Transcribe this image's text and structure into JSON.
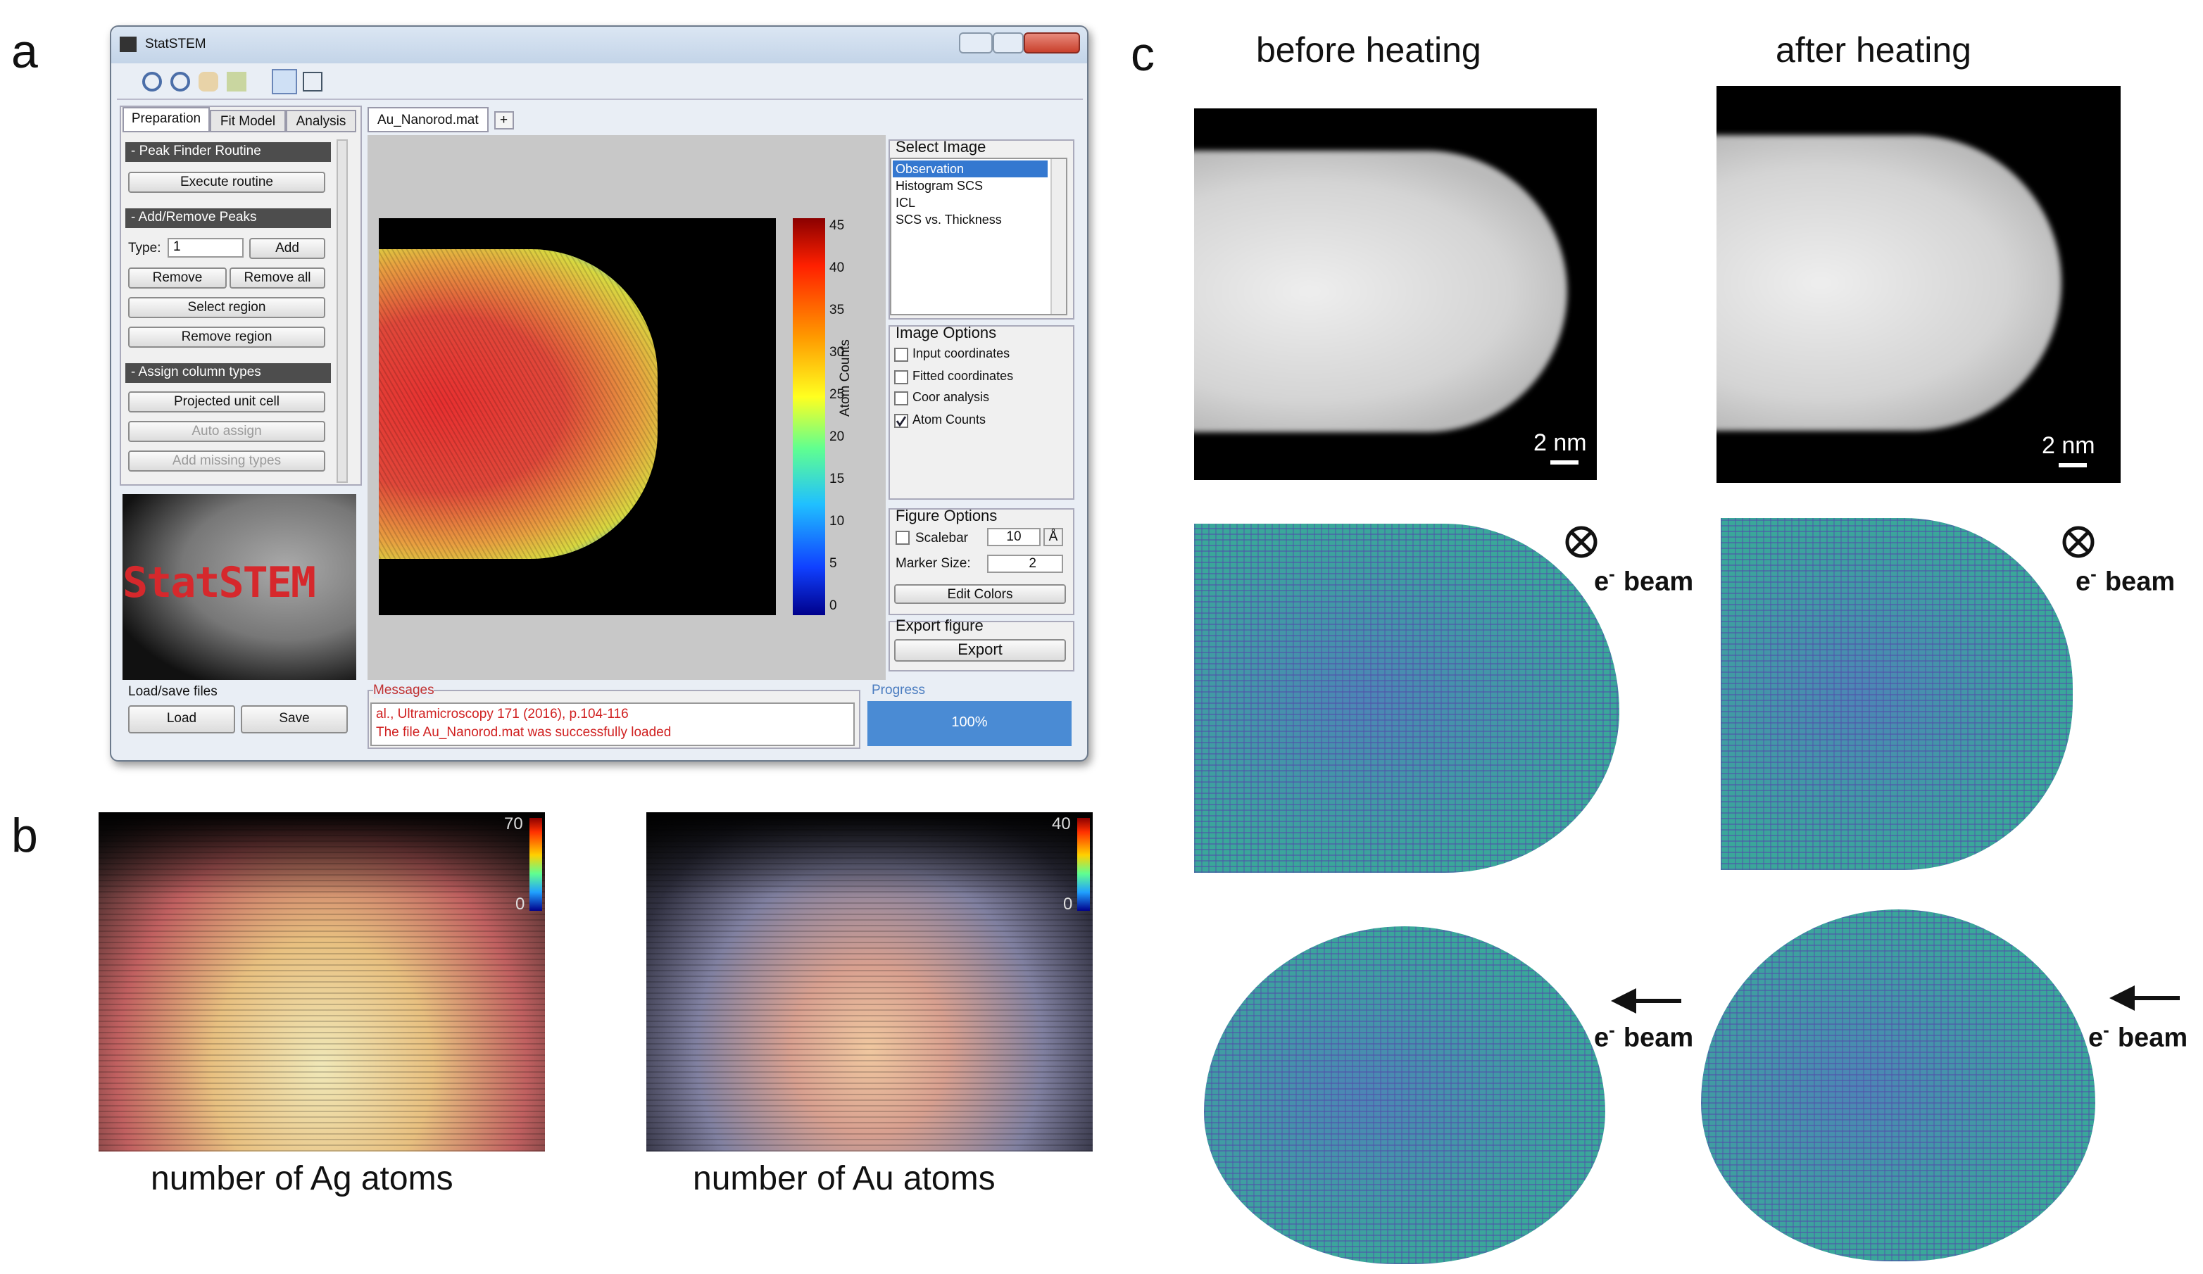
{
  "panel_labels": [
    "a",
    "b",
    "c"
  ],
  "statstem": {
    "window_title": "StatSTEM",
    "tabs": [
      "Preparation",
      "Fit Model",
      "Analysis"
    ],
    "peak_finder": {
      "title": "- Peak Finder Routine",
      "button": "Execute routine"
    },
    "add_remove": {
      "title": "- Add/Remove Peaks",
      "type_label": "Type:",
      "type_value": "1",
      "add": "Add",
      "remove": "Remove",
      "remove_all": "Remove all",
      "select_region": "Select region",
      "remove_region": "Remove region"
    },
    "assign": {
      "title": "- Assign column types",
      "buttons": [
        "Projected unit cell",
        "Auto assign",
        "Add missing types"
      ]
    },
    "logo": "StatSTEM",
    "load_save": {
      "title": "Load/save files",
      "load": "Load",
      "save": "Save"
    },
    "file_tab": "Au_Nanorod.mat",
    "plus_tab": "+",
    "colorbar_ticks": [
      45,
      40,
      35,
      30,
      25,
      20,
      15,
      10,
      5,
      0
    ],
    "colorbar_label": "Atom Counts",
    "select_image": {
      "title": "Select Image",
      "items": [
        "Observation",
        "Histogram SCS",
        "ICL",
        "SCS vs. Thickness"
      ]
    },
    "image_options": {
      "title": "Image Options",
      "items": [
        {
          "label": "Input coordinates",
          "checked": false
        },
        {
          "label": "Fitted coordinates",
          "checked": false
        },
        {
          "label": "Coor analysis",
          "checked": false
        },
        {
          "label": "Atom Counts",
          "checked": true
        }
      ]
    },
    "figure_options": {
      "title": "Figure Options",
      "scalebar_label": "Scalebar",
      "scalebar_checked": false,
      "scalebar_value": "10",
      "scalebar_unit": "Å",
      "marker_size_label": "Marker Size:",
      "marker_size_value": "2",
      "button": "Edit Colors"
    },
    "export": {
      "title": "Export figure",
      "button": "Export"
    },
    "messages": {
      "title": "Messages",
      "lines": [
        "al., Ultramicroscopy 171 (2016), p.104-116",
        "The file Au_Nanorod.mat was successfully loaded"
      ]
    },
    "progress": {
      "title": "Progress",
      "value": "100%"
    }
  },
  "panel_b": [
    {
      "caption": "number of Ag atoms",
      "max": "70",
      "min": "0"
    },
    {
      "caption": "number of Au atoms",
      "max": "40",
      "min": "0"
    }
  ],
  "panel_c": {
    "columns": [
      "before heating",
      "after heating"
    ],
    "scalebar": "2 nm",
    "beam": {
      "e": "e",
      "sup": "-",
      "text": "beam"
    }
  }
}
